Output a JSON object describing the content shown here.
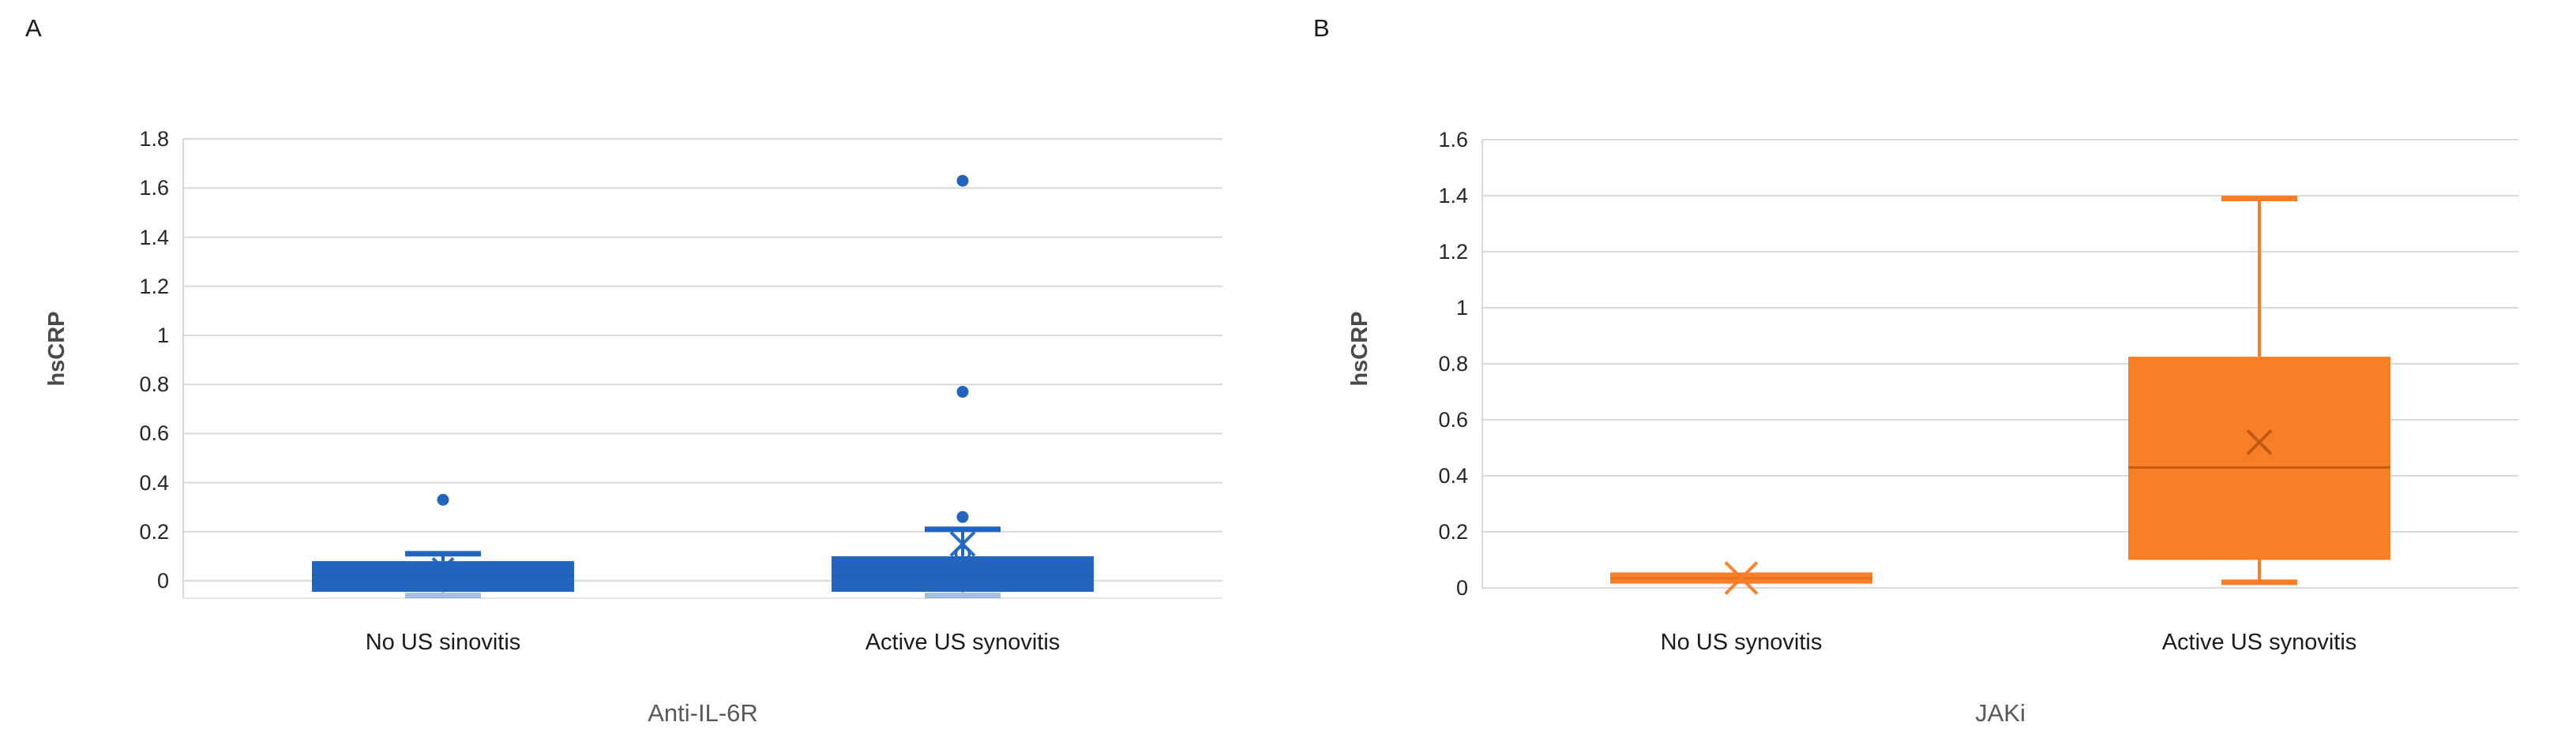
{
  "figure": {
    "background": "#FFFFFF",
    "gridline_color": "#D9D9D9"
  },
  "chart_data": [
    {
      "type": "box",
      "panel_label": "A",
      "title": "Anti-IL-6R",
      "ylabel": "hsCRP",
      "categories": [
        "No US sinovitis",
        "Active US synovitis"
      ],
      "ytick_labels": [
        "1.8",
        "1.6",
        "1.4",
        "1.2",
        "1",
        "0.8",
        "0.6",
        "0.4",
        "0.2",
        "0"
      ],
      "ylim": [
        -0.07,
        1.8
      ],
      "grid": true,
      "legend": false,
      "series_color": "#2365BE",
      "accent_dark": "#1D549F",
      "boxes": [
        {
          "category": "No US sinovitis",
          "whisker_low": -0.06,
          "q1": -0.045,
          "median": 0.02,
          "q3": 0.08,
          "whisker_high": 0.11,
          "mean": 0.05,
          "outliers": [
            0.33
          ]
        },
        {
          "category": "Active US synovitis",
          "whisker_low": -0.06,
          "q1": -0.045,
          "median": 0.02,
          "q3": 0.1,
          "whisker_high": 0.21,
          "mean": 0.15,
          "outliers": [
            0.26,
            0.77,
            1.63
          ],
          "open_marker": 0.11
        }
      ]
    },
    {
      "type": "box",
      "panel_label": "B",
      "title": "JAKi",
      "ylabel": "hsCRP",
      "categories": [
        "No US synovitis",
        "Active US synovitis"
      ],
      "ytick_labels": [
        "1.6",
        "1.4",
        "1.2",
        "1",
        "0.8",
        "0.6",
        "0.4",
        "0.2",
        "0"
      ],
      "ylim": [
        0,
        1.6
      ],
      "grid": true,
      "legend": false,
      "series_color": "#F87E28",
      "accent_dark": "#C05A11",
      "boxes": [
        {
          "category": "No US synovitis",
          "whisker_low": 0.015,
          "q1": 0.015,
          "median": 0.035,
          "q3": 0.055,
          "whisker_high": 0.055,
          "mean": 0.035,
          "outliers": []
        },
        {
          "category": "Active US synovitis",
          "whisker_low": 0.02,
          "q1": 0.1,
          "median": 0.43,
          "q3": 0.825,
          "whisker_high": 1.39,
          "mean": 0.52,
          "outliers": []
        }
      ]
    }
  ]
}
